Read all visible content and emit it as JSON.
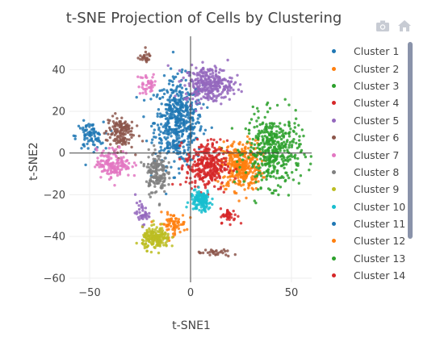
{
  "title": "t-SNE Projection of Cells by Clustering",
  "toolbar": {
    "icons": [
      "camera-icon",
      "home-icon"
    ]
  },
  "chart_data": {
    "type": "scatter",
    "title": "t-SNE Projection of Cells by Clustering",
    "xlabel": "t-SNE1",
    "ylabel": "t-SNE2",
    "xlim": [
      -60,
      60
    ],
    "ylim": [
      -62,
      56
    ],
    "xticks": [
      -50,
      0,
      50
    ],
    "yticks": [
      -60,
      -40,
      -20,
      0,
      20,
      40
    ],
    "xtick_labels": [
      "−50",
      "0",
      "50"
    ],
    "ytick_labels": [
      "−60",
      "−40",
      "−20",
      "0",
      "20",
      "40"
    ],
    "grid": true,
    "legend_position": "right",
    "series": [
      {
        "name": "Cluster 1",
        "color": "#1f77b4",
        "blobs": [
          {
            "cx": -6,
            "cy": 15,
            "sx": 7,
            "sy": 12,
            "n": 520
          },
          {
            "cx": -50,
            "cy": 8,
            "sx": 4,
            "sy": 4,
            "n": 80
          }
        ]
      },
      {
        "name": "Cluster 2",
        "color": "#ff7f0e",
        "blobs": [
          {
            "cx": 25,
            "cy": -6,
            "sx": 6,
            "sy": 7,
            "n": 360
          },
          {
            "cx": -9,
            "cy": -34,
            "sx": 4,
            "sy": 3,
            "n": 70
          }
        ]
      },
      {
        "name": "Cluster 3",
        "color": "#2ca02c",
        "blobs": [
          {
            "cx": 41,
            "cy": 1,
            "sx": 8,
            "sy": 10,
            "n": 420
          }
        ]
      },
      {
        "name": "Cluster 4",
        "color": "#d62728",
        "blobs": [
          {
            "cx": 8,
            "cy": -6,
            "sx": 6,
            "sy": 7,
            "n": 300
          },
          {
            "cx": 19,
            "cy": -30,
            "sx": 2.5,
            "sy": 2,
            "n": 40
          }
        ]
      },
      {
        "name": "Cluster 5",
        "color": "#9467bd",
        "blobs": [
          {
            "cx": 9,
            "cy": 33,
            "sx": 7,
            "sy": 5,
            "n": 300
          },
          {
            "cx": -24,
            "cy": -29,
            "sx": 2,
            "sy": 3,
            "n": 40
          }
        ]
      },
      {
        "name": "Cluster 6",
        "color": "#8c564b",
        "blobs": [
          {
            "cx": -35,
            "cy": 10,
            "sx": 4,
            "sy": 5,
            "n": 140
          },
          {
            "cx": -23,
            "cy": 46,
            "sx": 2,
            "sy": 1.5,
            "n": 25
          },
          {
            "cx": 12,
            "cy": -48,
            "sx": 5,
            "sy": 1,
            "n": 30
          }
        ]
      },
      {
        "name": "Cluster 7",
        "color": "#e377c2",
        "blobs": [
          {
            "cx": -38,
            "cy": -5,
            "sx": 5,
            "sy": 4,
            "n": 160
          },
          {
            "cx": -21,
            "cy": 33,
            "sx": 3,
            "sy": 3,
            "n": 40
          }
        ]
      },
      {
        "name": "Cluster 8",
        "color": "#7f7f7f",
        "blobs": [
          {
            "cx": -17,
            "cy": -9,
            "sx": 3,
            "sy": 6,
            "n": 160
          }
        ]
      },
      {
        "name": "Cluster 9",
        "color": "#bcbd22",
        "blobs": [
          {
            "cx": -17,
            "cy": -41,
            "sx": 4,
            "sy": 3,
            "n": 180
          }
        ]
      },
      {
        "name": "Cluster 10",
        "color": "#17becf",
        "blobs": [
          {
            "cx": 5,
            "cy": -23,
            "sx": 3,
            "sy": 3,
            "n": 130
          }
        ]
      },
      {
        "name": "Cluster 11",
        "color": "#1f77b4",
        "blobs": []
      },
      {
        "name": "Cluster 12",
        "color": "#ff7f0e",
        "blobs": []
      },
      {
        "name": "Cluster 13",
        "color": "#2ca02c",
        "blobs": []
      },
      {
        "name": "Cluster 14",
        "color": "#d62728",
        "blobs": []
      }
    ]
  }
}
